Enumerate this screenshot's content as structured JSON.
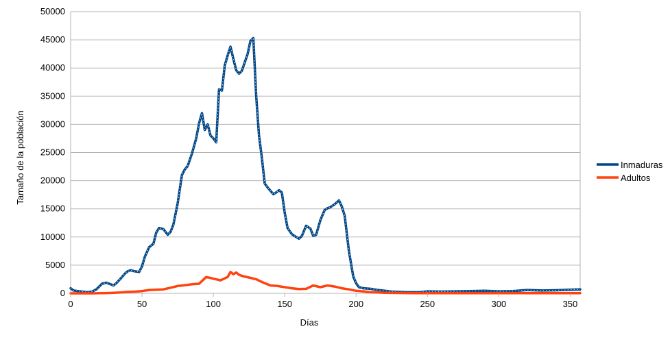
{
  "chart_data": {
    "type": "line",
    "xlabel": "Días",
    "ylabel": "Tamaño de la población",
    "xlim": [
      0,
      357
    ],
    "ylim": [
      0,
      50000
    ],
    "x_ticks": [
      0,
      50,
      100,
      150,
      200,
      250,
      300,
      350
    ],
    "y_ticks": [
      0,
      5000,
      10000,
      15000,
      20000,
      25000,
      30000,
      35000,
      40000,
      45000,
      50000
    ],
    "grid": "horizontal",
    "legend_position": "right",
    "series": [
      {
        "name": "Inmaduras",
        "color": "#004586",
        "x": [
          0,
          2,
          5,
          8,
          12,
          15,
          18,
          20,
          22,
          25,
          28,
          30,
          32,
          35,
          38,
          40,
          42,
          45,
          48,
          50,
          52,
          55,
          58,
          60,
          62,
          65,
          68,
          70,
          72,
          75,
          78,
          80,
          82,
          85,
          88,
          90,
          92,
          94,
          96,
          98,
          100,
          102,
          104,
          106,
          108,
          110,
          112,
          114,
          116,
          118,
          120,
          122,
          124,
          126,
          128,
          130,
          132,
          134,
          136,
          138,
          140,
          142,
          144,
          146,
          148,
          150,
          152,
          155,
          158,
          160,
          162,
          165,
          168,
          170,
          172,
          175,
          178,
          180,
          182,
          185,
          188,
          190,
          192,
          195,
          198,
          200,
          202,
          205,
          210,
          215,
          220,
          225,
          230,
          235,
          240,
          245,
          250,
          260,
          270,
          280,
          290,
          300,
          310,
          320,
          330,
          340,
          350,
          357
        ],
        "y": [
          900,
          500,
          400,
          300,
          200,
          300,
          700,
          1200,
          1700,
          1900,
          1600,
          1400,
          1800,
          2600,
          3500,
          3900,
          4100,
          3900,
          3800,
          4800,
          6500,
          8200,
          8800,
          10800,
          11600,
          11400,
          10400,
          10900,
          12200,
          16000,
          21000,
          22000,
          22600,
          24800,
          27500,
          30200,
          32000,
          29000,
          30000,
          28000,
          27500,
          26800,
          36200,
          36000,
          40500,
          42200,
          43800,
          41600,
          39600,
          39000,
          39500,
          41000,
          42500,
          44800,
          45300,
          35000,
          28000,
          24000,
          19500,
          18800,
          18200,
          17600,
          17900,
          18300,
          17900,
          14300,
          11600,
          10500,
          10000,
          9700,
          10200,
          12000,
          11500,
          10200,
          10400,
          13000,
          14800,
          15100,
          15300,
          15800,
          16500,
          15400,
          13800,
          7500,
          3000,
          1800,
          1100,
          900,
          800,
          600,
          450,
          300,
          250,
          200,
          200,
          200,
          350,
          300,
          350,
          400,
          450,
          350,
          400,
          600,
          500,
          550,
          650,
          700
        ]
      },
      {
        "name": "Adultos",
        "color": "#ff420e",
        "x": [
          0,
          10,
          16,
          20,
          25,
          30,
          35,
          40,
          45,
          50,
          55,
          60,
          65,
          70,
          75,
          80,
          85,
          90,
          95,
          100,
          105,
          110,
          112,
          114,
          116,
          118,
          120,
          125,
          130,
          135,
          140,
          145,
          150,
          155,
          160,
          165,
          170,
          175,
          180,
          185,
          190,
          195,
          200,
          205,
          210,
          215,
          220,
          230,
          240,
          260,
          280,
          300,
          320,
          340,
          357
        ],
        "y": [
          0,
          0,
          0,
          20,
          50,
          80,
          150,
          250,
          300,
          400,
          600,
          650,
          700,
          1000,
          1300,
          1450,
          1600,
          1700,
          2900,
          2600,
          2300,
          2900,
          3800,
          3400,
          3700,
          3300,
          3100,
          2800,
          2500,
          1900,
          1400,
          1300,
          1100,
          900,
          750,
          800,
          1400,
          1100,
          1400,
          1200,
          900,
          700,
          450,
          350,
          200,
          150,
          100,
          60,
          40,
          30,
          30,
          30,
          30,
          30,
          30
        ]
      }
    ]
  }
}
